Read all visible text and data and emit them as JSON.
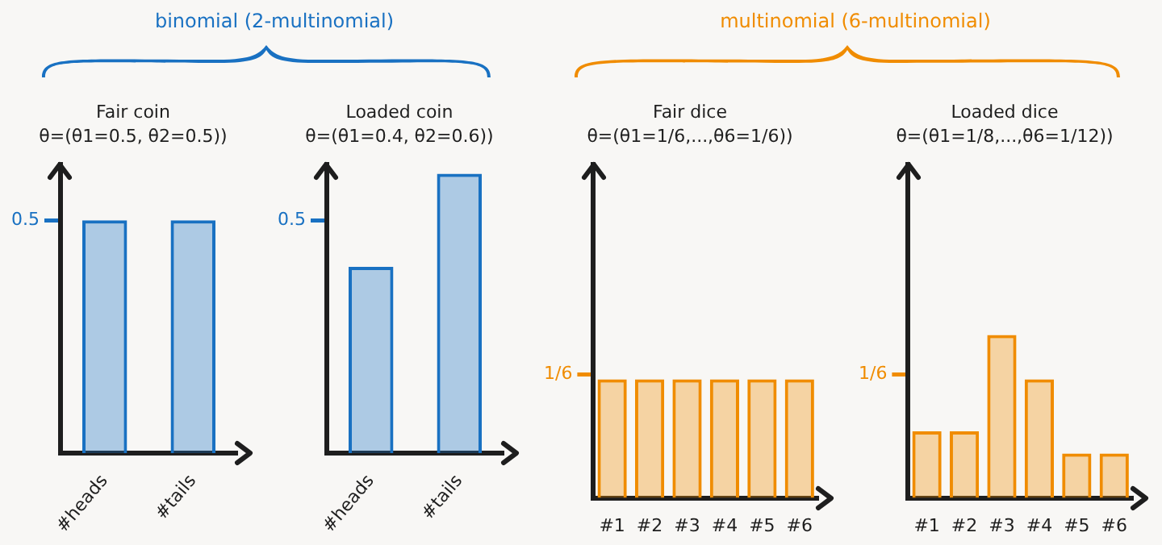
{
  "chart_data": [
    {
      "type": "bar",
      "title": "Fair coin",
      "subtitle": "θ=(θ1=0.5, θ2=0.5))",
      "annotations": [
        "binomial (2-multinomial)"
      ],
      "categories": [
        "#heads",
        "#tails"
      ],
      "values": [
        0.5,
        0.5
      ],
      "color": "#1971c2",
      "ylim": [
        0,
        0.62
      ],
      "yticks": [
        0.5
      ]
    },
    {
      "type": "bar",
      "title": "Loaded coin",
      "subtitle": "θ=(θ1=0.4, θ2=0.6))",
      "categories": [
        "#heads",
        "#tails"
      ],
      "values": [
        0.4,
        0.6
      ],
      "color": "#1971c2",
      "ylim": [
        0,
        0.62
      ],
      "yticks": [
        0.5
      ]
    },
    {
      "type": "bar",
      "title": "Fair dice",
      "subtitle": "θ=(θ1=1/6,...,θ6=1/6))",
      "annotations": [
        "multinomial (6-multinomial)"
      ],
      "categories": [
        "#1",
        "#2",
        "#3",
        "#4",
        "#5",
        "#6"
      ],
      "values": [
        0.16,
        0.16,
        0.16,
        0.16,
        0.16,
        0.16
      ],
      "color": "#f08c00",
      "ylim": [
        0,
        0.45
      ],
      "yticks": [
        {
          "value": 0.167,
          "label": "1/6"
        }
      ]
    },
    {
      "type": "bar",
      "title": "Loaded dice",
      "subtitle": "θ=(θ1=1/8,...,θ6=1/12))",
      "categories": [
        "#1",
        "#2",
        "#3",
        "#4",
        "#5",
        "#6"
      ],
      "values": [
        0.09,
        0.09,
        0.22,
        0.16,
        0.06,
        0.06
      ],
      "color": "#f08c00",
      "ylim": [
        0,
        0.45
      ],
      "yticks": [
        {
          "value": 0.167,
          "label": "1/6"
        }
      ]
    }
  ]
}
